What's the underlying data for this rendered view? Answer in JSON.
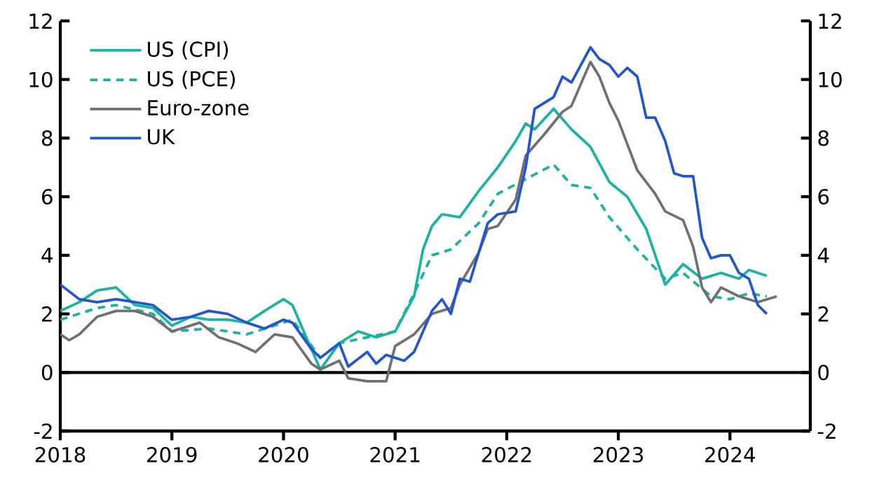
{
  "chart_data": {
    "type": "line",
    "xlim": [
      2018,
      2024.72
    ],
    "xticks": [
      2018,
      2019,
      2020,
      2021,
      2022,
      2023,
      2024
    ],
    "ylim": [
      -2,
      12
    ],
    "yticks": [
      -2,
      0,
      2,
      4,
      6,
      8,
      10,
      12
    ],
    "y2lim": [
      -2,
      12
    ],
    "y2ticks": [
      -2,
      0,
      2,
      4,
      6,
      8,
      10,
      12
    ],
    "grid": false,
    "legend": "top left",
    "ref_lines": [
      {
        "axis": "y",
        "value": 0,
        "color": "#000000"
      }
    ],
    "series": [
      {
        "name": "US (CPI)",
        "color": "#1ab3a0",
        "line_style": "solid",
        "x": [
          2018.0,
          2018.17,
          2018.33,
          2018.5,
          2018.67,
          2018.83,
          2019.0,
          2019.17,
          2019.33,
          2019.5,
          2019.67,
          2019.83,
          2020.0,
          2020.08,
          2020.17,
          2020.33,
          2020.5,
          2020.67,
          2020.83,
          2021.0,
          2021.17,
          2021.25,
          2021.33,
          2021.42,
          2021.58,
          2021.75,
          2021.92,
          2022.08,
          2022.17,
          2022.25,
          2022.42,
          2022.58,
          2022.75,
          2022.92,
          2023.08,
          2023.25,
          2023.42,
          2023.58,
          2023.75,
          2023.92,
          2024.08,
          2024.17,
          2024.33
        ],
        "values": [
          2.1,
          2.4,
          2.8,
          2.9,
          2.3,
          2.2,
          1.6,
          1.9,
          1.8,
          1.8,
          1.7,
          2.1,
          2.5,
          2.3,
          1.5,
          0.1,
          1.0,
          1.4,
          1.2,
          1.4,
          2.6,
          4.2,
          5.0,
          5.4,
          5.3,
          6.2,
          7.0,
          7.9,
          8.5,
          8.3,
          9.0,
          8.3,
          7.7,
          6.5,
          6.0,
          4.9,
          3.0,
          3.7,
          3.2,
          3.4,
          3.2,
          3.5,
          3.3
        ]
      },
      {
        "name": "US (PCE)",
        "color": "#1ab3a0",
        "line_style": "dashed",
        "x": [
          2018.0,
          2018.33,
          2018.5,
          2018.83,
          2019.0,
          2019.33,
          2019.67,
          2019.92,
          2020.08,
          2020.33,
          2020.5,
          2020.75,
          2021.0,
          2021.17,
          2021.33,
          2021.5,
          2021.75,
          2021.92,
          2022.17,
          2022.42,
          2022.58,
          2022.75,
          2022.92,
          2023.17,
          2023.42,
          2023.58,
          2023.83,
          2024.0,
          2024.17,
          2024.33
        ],
        "values": [
          1.8,
          2.2,
          2.3,
          2.0,
          1.4,
          1.5,
          1.3,
          1.6,
          1.8,
          0.5,
          1.0,
          1.2,
          1.4,
          2.7,
          4.0,
          4.2,
          5.1,
          6.1,
          6.6,
          7.1,
          6.4,
          6.3,
          5.3,
          4.2,
          3.2,
          3.4,
          2.6,
          2.5,
          2.7,
          2.6
        ]
      },
      {
        "name": "Euro-zone",
        "color": "#707070",
        "line_style": "solid",
        "x": [
          2018.0,
          2018.08,
          2018.17,
          2018.33,
          2018.5,
          2018.67,
          2018.83,
          2019.0,
          2019.25,
          2019.42,
          2019.58,
          2019.75,
          2019.92,
          2020.08,
          2020.25,
          2020.33,
          2020.5,
          2020.58,
          2020.75,
          2020.92,
          2021.0,
          2021.17,
          2021.33,
          2021.5,
          2021.58,
          2021.75,
          2021.83,
          2021.92,
          2022.08,
          2022.17,
          2022.33,
          2022.5,
          2022.58,
          2022.67,
          2022.75,
          2022.83,
          2022.92,
          2023.0,
          2023.17,
          2023.33,
          2023.42,
          2023.58,
          2023.67,
          2023.75,
          2023.83,
          2023.92,
          2024.08,
          2024.25,
          2024.42
        ],
        "values": [
          1.3,
          1.1,
          1.3,
          1.9,
          2.1,
          2.1,
          1.9,
          1.4,
          1.7,
          1.2,
          1.0,
          0.7,
          1.3,
          1.2,
          0.3,
          0.1,
          0.4,
          -0.2,
          -0.3,
          -0.3,
          0.9,
          1.3,
          2.0,
          2.2,
          3.0,
          4.1,
          4.9,
          5.0,
          5.9,
          7.4,
          8.1,
          8.9,
          9.1,
          9.9,
          10.6,
          10.1,
          9.2,
          8.6,
          6.9,
          6.1,
          5.5,
          5.2,
          4.3,
          2.9,
          2.4,
          2.9,
          2.6,
          2.4,
          2.6
        ]
      },
      {
        "name": "UK",
        "color": "#2255d0",
        "line_style": "solid",
        "x": [
          2018.0,
          2018.17,
          2018.33,
          2018.5,
          2018.67,
          2018.83,
          2019.0,
          2019.17,
          2019.33,
          2019.5,
          2019.67,
          2019.83,
          2020.0,
          2020.08,
          2020.25,
          2020.33,
          2020.5,
          2020.58,
          2020.75,
          2020.83,
          2020.92,
          2021.08,
          2021.17,
          2021.33,
          2021.42,
          2021.5,
          2021.58,
          2021.67,
          2021.83,
          2021.92,
          2022.08,
          2022.17,
          2022.25,
          2022.42,
          2022.5,
          2022.58,
          2022.75,
          2022.83,
          2022.92,
          2023.0,
          2023.08,
          2023.17,
          2023.25,
          2023.33,
          2023.42,
          2023.5,
          2023.58,
          2023.67,
          2023.75,
          2023.83,
          2023.92,
          2024.0,
          2024.08,
          2024.17,
          2024.25,
          2024.33
        ],
        "values": [
          3.0,
          2.5,
          2.4,
          2.5,
          2.4,
          2.3,
          1.8,
          1.9,
          2.1,
          2.0,
          1.7,
          1.5,
          1.8,
          1.7,
          0.8,
          0.5,
          1.0,
          0.2,
          0.7,
          0.3,
          0.6,
          0.4,
          0.7,
          2.1,
          2.5,
          2.0,
          3.2,
          3.1,
          5.1,
          5.4,
          5.5,
          7.0,
          9.0,
          9.4,
          10.1,
          9.9,
          11.1,
          10.7,
          10.5,
          10.1,
          10.4,
          10.1,
          8.7,
          8.7,
          7.9,
          6.8,
          6.7,
          6.7,
          4.6,
          3.9,
          4.0,
          4.0,
          3.4,
          3.2,
          2.3,
          2.0
        ]
      }
    ]
  }
}
